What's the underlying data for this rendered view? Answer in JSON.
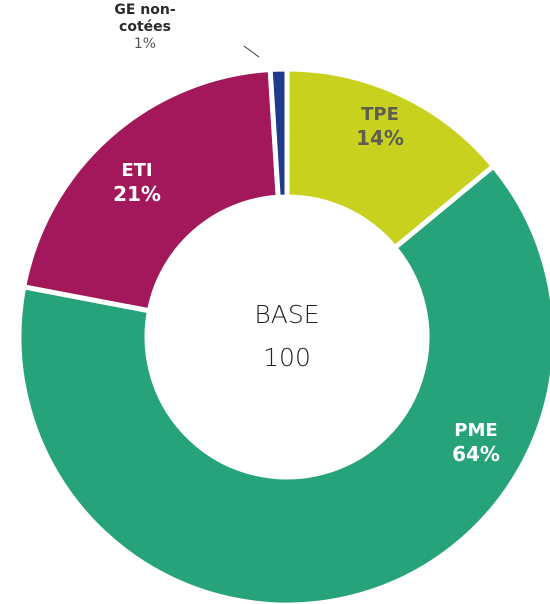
{
  "chart_data": {
    "type": "donut",
    "categories": [
      "TPE",
      "PME",
      "ETI",
      "GE non-cotées"
    ],
    "values": [
      14,
      64,
      21,
      1
    ],
    "value_labels": [
      "14%",
      "64%",
      "21%",
      "1%"
    ],
    "colors": [
      "#c8d21e",
      "#26a37a",
      "#a3185a",
      "#1f3a8a"
    ],
    "label_colors": [
      "#5e5e50",
      "#ffffff",
      "#ffffff",
      "#2b2b2b"
    ],
    "center_title": "BASE",
    "total": 100
  }
}
